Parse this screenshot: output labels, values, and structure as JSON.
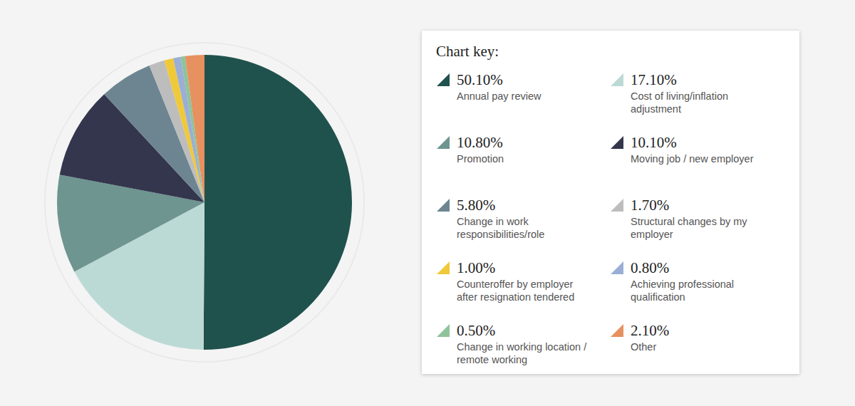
{
  "chart_data": {
    "type": "pie",
    "legend_title": "Chart key:",
    "categories": [
      "Annual pay review",
      "Cost of living/inflation adjustment",
      "Promotion",
      "Moving job / new employer",
      "Change in work responsibilities/role",
      "Structural changes by my employer",
      "Counteroffer by employer after resignation tendered",
      "Achieving professional qualification",
      "Change in working location / remote working",
      "Other"
    ],
    "values": [
      50.1,
      17.1,
      10.8,
      10.1,
      5.8,
      1.7,
      1.0,
      0.8,
      0.5,
      2.1
    ],
    "value_labels": [
      "50.10%",
      "17.10%",
      "10.80%",
      "10.10%",
      "5.80%",
      "1.70%",
      "1.00%",
      "0.80%",
      "0.50%",
      "2.10%"
    ],
    "colors": [
      "#20524d",
      "#bcdad5",
      "#6e9590",
      "#33364d",
      "#6d8591",
      "#bdbdbd",
      "#f0c93a",
      "#9aaed6",
      "#8fc39c",
      "#e6915f"
    ]
  }
}
